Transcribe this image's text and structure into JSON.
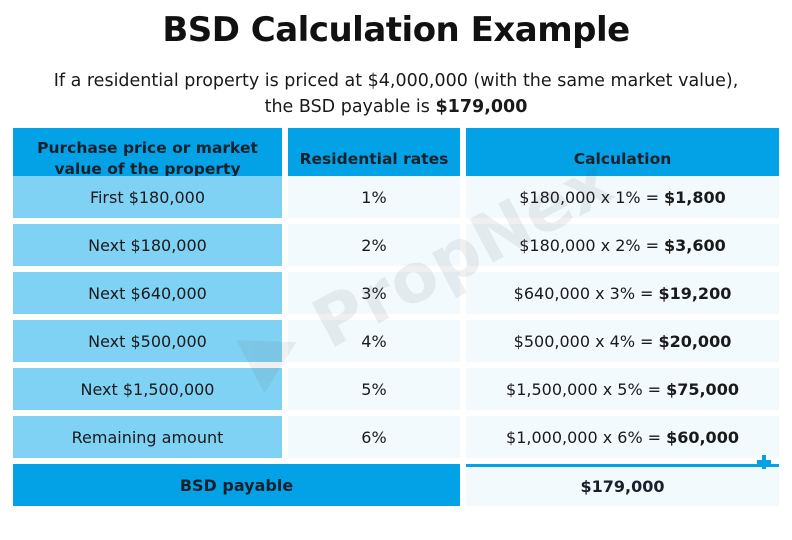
{
  "title": "BSD Calculation Example",
  "subtitle": {
    "line1": "If a residential property is priced at $4,000,000 (with the same market value),",
    "line2_prefix": "the BSD payable is",
    "line2_amount": "$179,000"
  },
  "watermark": "PropNex",
  "colors": {
    "header_blue": "#03a2e7",
    "light_blue": "#7fd2f3",
    "pale_blue": "#f2fafe"
  },
  "table": {
    "headers": [
      "Purchase price or market value of the property",
      "Residential rates",
      "Calculation"
    ],
    "rows": [
      {
        "tier": "First $180,000",
        "rate": "1%",
        "calc": "$180,000 x 1%",
        "amount": "$1,800"
      },
      {
        "tier": "Next $180,000",
        "rate": "2%",
        "calc": "$180,000 x 2%",
        "amount": "$3,600"
      },
      {
        "tier": "Next $640,000",
        "rate": "3%",
        "calc": "$640,000 x 3%",
        "amount": "$19,200"
      },
      {
        "tier": "Next $500,000",
        "rate": "4%",
        "calc": "$500,000 x 4%",
        "amount": "$20,000"
      },
      {
        "tier": "Next $1,500,000",
        "rate": "5%",
        "calc": "$1,500,000 x 5%",
        "amount": "$75,000"
      },
      {
        "tier": "Remaining amount",
        "rate": "6%",
        "calc": "$1,000,000 x 6%",
        "amount": "$60,000"
      }
    ],
    "equals": "=",
    "total_label": "BSD payable",
    "total_value": "$179,000"
  },
  "icons": {
    "sum_marker": "plus-icon"
  }
}
